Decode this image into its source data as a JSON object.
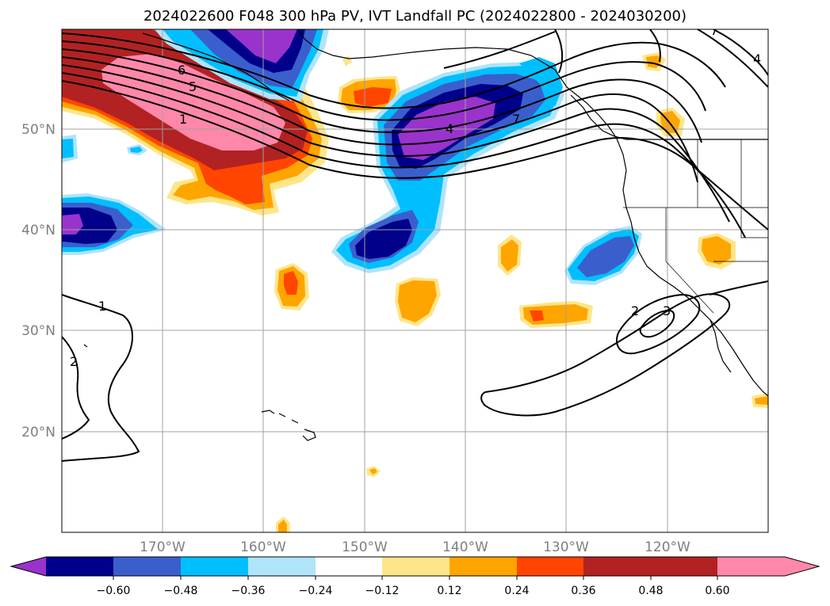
{
  "title": "2024022600 F048 300 hPa PV, IVT Landfall PC (2024022800 - 2024030200)",
  "lat_labels": [
    "50°N",
    "40°N",
    "30°N",
    "20°N"
  ],
  "lon_labels": [
    "170°W",
    "160°W",
    "150°W",
    "140°W",
    "130°W",
    "120°W"
  ],
  "colorbar": {
    "ticks": [
      "−0.60",
      "−0.48",
      "−0.36",
      "−0.24",
      "−0.12",
      "0.12",
      "0.24",
      "0.36",
      "0.48",
      "0.60"
    ],
    "colors": [
      "#9933cc",
      "#00008b",
      "#3a5fcd",
      "#00bfff",
      "#afe4fa",
      "#ffffff",
      "#fde68a",
      "#ffa500",
      "#ff4500",
      "#b22222",
      "#ff88aa"
    ]
  },
  "contour_labels": [
    "6",
    "5",
    "1",
    "4",
    "7",
    "1",
    "2",
    "2",
    "3",
    "7",
    "4"
  ],
  "colors": {
    "pink": "#ff88aa",
    "darkred": "#b22222",
    "orangered": "#ff4500",
    "orange": "#ffa500",
    "yellow": "#fde68a",
    "lightblue": "#afe4fa",
    "deepsky": "#00bfff",
    "royal": "#3a5fcd",
    "navy": "#00008b",
    "purple": "#9933cc",
    "grid": "#a0a0a0"
  }
}
